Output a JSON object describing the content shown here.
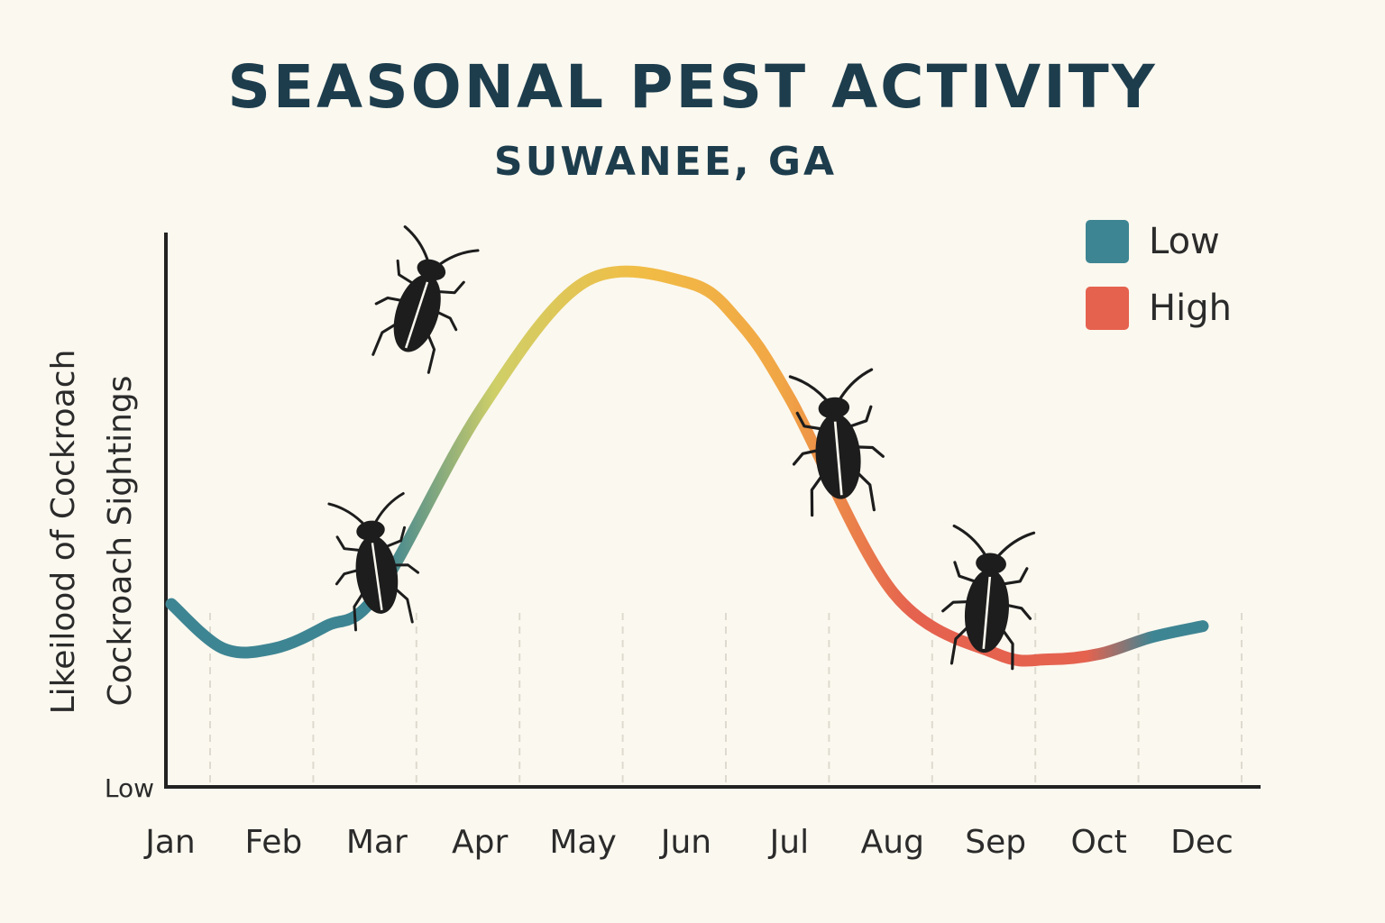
{
  "title": "SEASONAL PEST ACTIVITY",
  "subtitle": "SUWANEE, GA",
  "colors": {
    "low": "#3e8593",
    "mid": "#f1bd45",
    "high": "#e5624f",
    "axis": "#222222",
    "text": "#1d3d4d"
  },
  "legend": [
    {
      "label": "Low",
      "color": "#3e8593"
    },
    {
      "label": "High",
      "color": "#e5624f"
    }
  ],
  "chart_data": {
    "type": "line",
    "title": "SEASONAL PEST ACTIVITY",
    "subtitle": "SUWANEE, GA",
    "xlabel": "",
    "ylabel_lines": [
      "Likeilood of Cockroach",
      "Cockroach Sightings"
    ],
    "y_tick_label": "Low",
    "categories": [
      "Jan",
      "Feb",
      "Mar",
      "Apr",
      "May",
      "Jun",
      "Jul",
      "Aug",
      "Sep",
      "Oct",
      "Dec"
    ],
    "ylim": [
      0,
      100
    ],
    "grid": "vertical dashed",
    "legend_position": "top-right",
    "series": [
      {
        "name": "Likelihood of Cockroach Sightings",
        "x": [
          0,
          0.5,
          1,
          1.5,
          2,
          3,
          4,
          5,
          5.5,
          6,
          7,
          8,
          8.5,
          9,
          9.5,
          10
        ],
        "values": [
          33,
          25,
          25,
          29,
          35,
          68,
          91,
          91,
          84,
          70,
          35,
          24,
          23,
          24,
          27,
          29
        ]
      }
    ],
    "cockroach_markers": [
      "Mar",
      "Apr",
      "Aug",
      "Sep"
    ]
  }
}
